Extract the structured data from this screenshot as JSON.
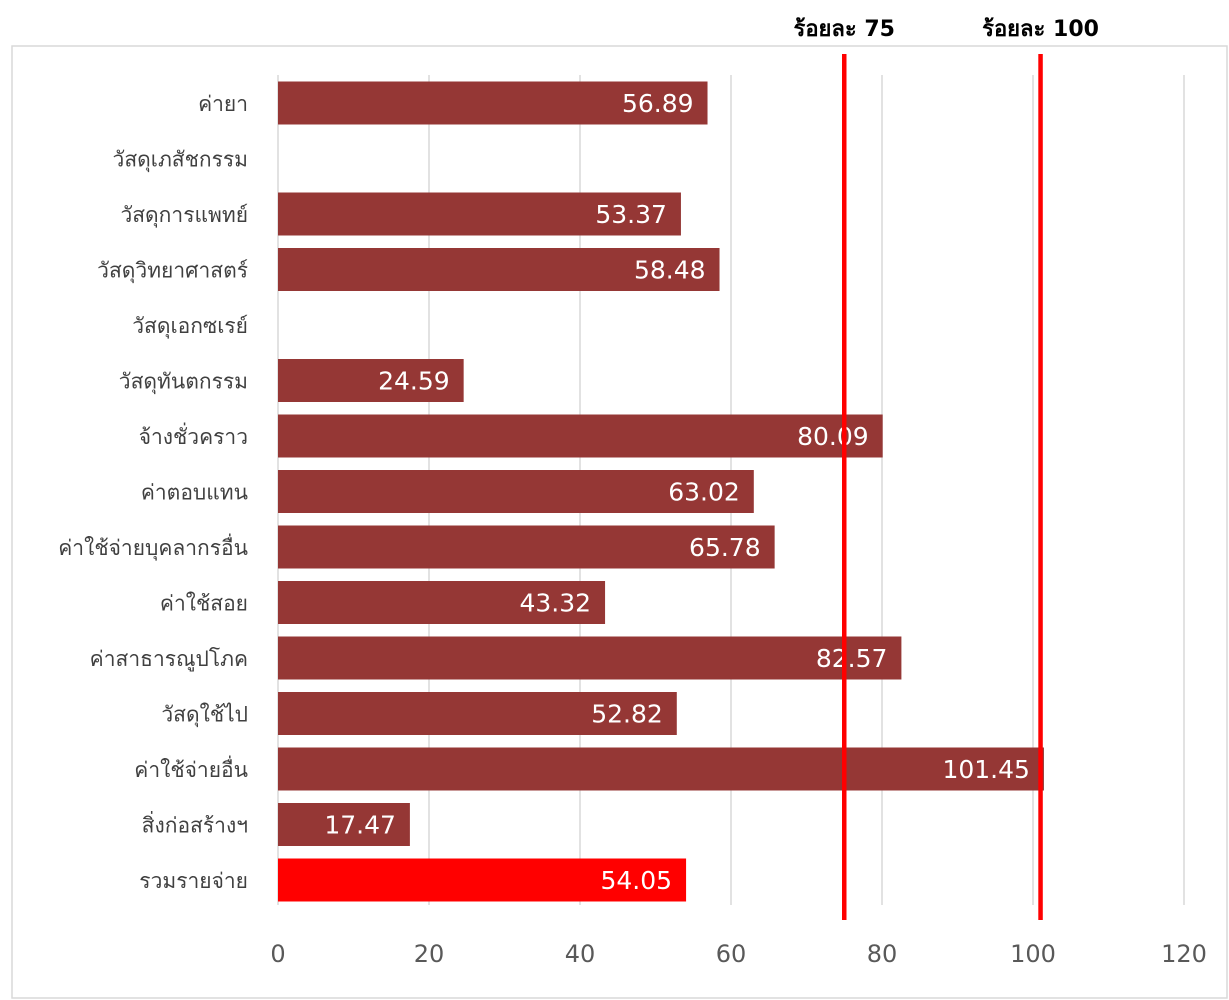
{
  "chart_data": {
    "type": "bar",
    "orientation": "horizontal",
    "categories": [
      "ค่ายา",
      "วัสดุเภสัชกรรม",
      "วัสดุการแพทย์",
      "วัสดุวิทยาศาสตร์",
      "วัสดุเอกซเรย์",
      "วัสดุทันตกรรม",
      "จ้างชั่วคราว",
      "ค่าตอบแทน",
      "ค่าใช้จ่ายบุคลากรอื่น",
      "ค่าใช้สอย",
      "ค่าสาธารณูปโภค",
      "วัสดุใช้ไป",
      "ค่าใช้จ่ายอื่น",
      "สิ่งก่อสร้างฯ",
      "รวมรายจ่าย"
    ],
    "values": [
      56.89,
      null,
      53.37,
      58.48,
      null,
      24.59,
      80.09,
      63.02,
      65.78,
      43.32,
      82.57,
      52.82,
      101.45,
      17.47,
      54.05
    ],
    "data_labels": [
      "56.89",
      "",
      "53.37",
      "58.48",
      "",
      "24.59",
      "80.09",
      "63.02",
      "65.78",
      "43.32",
      "82.57",
      "52.82",
      "101.45",
      "17.47",
      "54.05"
    ],
    "bar_colors": [
      "#953735",
      "#953735",
      "#953735",
      "#953735",
      "#953735",
      "#953735",
      "#953735",
      "#953735",
      "#953735",
      "#953735",
      "#953735",
      "#953735",
      "#953735",
      "#953735",
      "#ff0000"
    ],
    "xlim": [
      0,
      120
    ],
    "x_ticks": [
      0,
      20,
      40,
      60,
      80,
      100,
      120
    ],
    "x_tick_labels": [
      "0",
      "20",
      "40",
      "60",
      "80",
      "100",
      "120"
    ],
    "grid": "vertical",
    "reference_lines": [
      {
        "value": 75,
        "label": "ร้อยละ 75",
        "color": "#ff0000"
      },
      {
        "value": 101,
        "label": "ร้อยละ 100",
        "color": "#ff0000"
      }
    ],
    "title": "",
    "xlabel": "",
    "ylabel": ""
  }
}
